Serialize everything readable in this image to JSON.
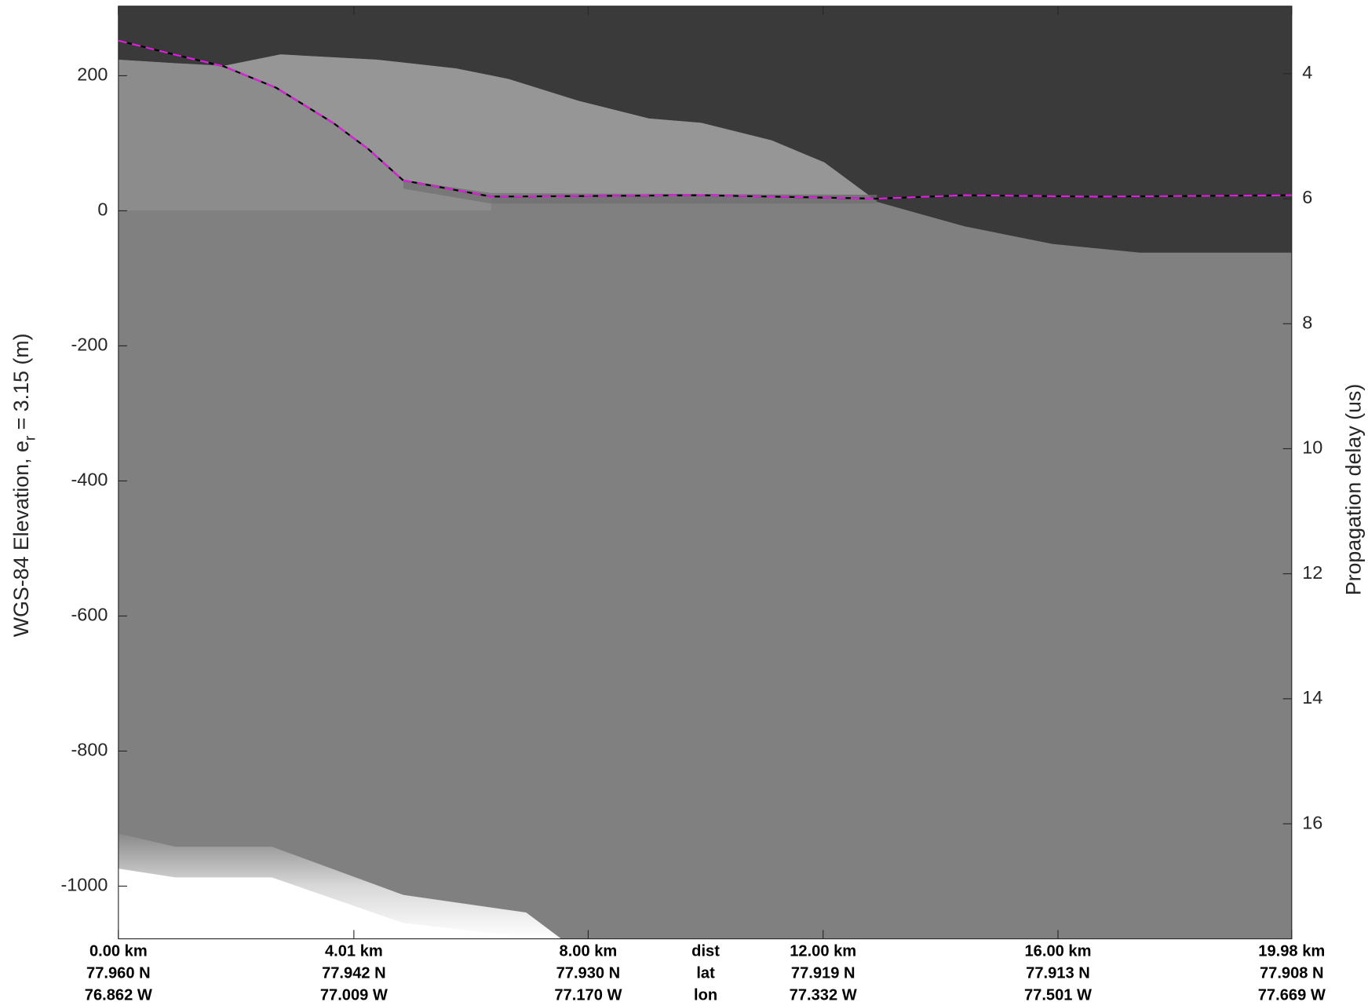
{
  "chart_data": {
    "type": "radargram",
    "xlim": [
      0,
      19.98
    ],
    "xticks": [
      {
        "value": 0,
        "label": "0.00 km"
      },
      {
        "value": 4.01,
        "label": "4.01 km"
      },
      {
        "value": 8.0,
        "label": "8.00 km"
      },
      {
        "value": 12.0,
        "label": "12.00 km"
      },
      {
        "value": 16.0,
        "label": "16.00 km"
      },
      {
        "value": 19.98,
        "label": "19.98 km"
      }
    ],
    "lat_labels": [
      "77.960 N",
      "77.942 N",
      "77.930 N",
      "77.919 N",
      "77.913 N",
      "77.908 N"
    ],
    "lon_labels": [
      "76.862 W",
      "77.009 W",
      "77.170 W",
      "77.332 W",
      "77.501 W",
      "77.669 W"
    ],
    "row_labels": [
      "dist",
      "lat",
      "lon"
    ],
    "ylabel": {
      "main": "WGS-84 Elevation, e",
      "subscript": "r",
      "suffix": " = 3.15 (m)"
    },
    "y2label": "Propagation delay (us)",
    "ylim": [
      -1078,
      303
    ],
    "yticks": [
      -1000,
      -800,
      -600,
      -400,
      -200,
      0,
      200
    ],
    "y2lim": [
      17.84,
      2.92
    ],
    "y2ticks": [
      4,
      6,
      8,
      10,
      12,
      14,
      16
    ],
    "series": [
      {
        "color": "#e020e0",
        "x": [
          0,
          0.97,
          1.79,
          2.69,
          3.66,
          4.26,
          4.85,
          6.35,
          9.93,
          12.92,
          14.41,
          16.65,
          19.98
        ],
        "values": [
          252,
          231,
          214,
          182,
          130,
          91,
          45,
          21,
          23,
          18,
          23,
          21,
          23
        ]
      }
    ]
  }
}
